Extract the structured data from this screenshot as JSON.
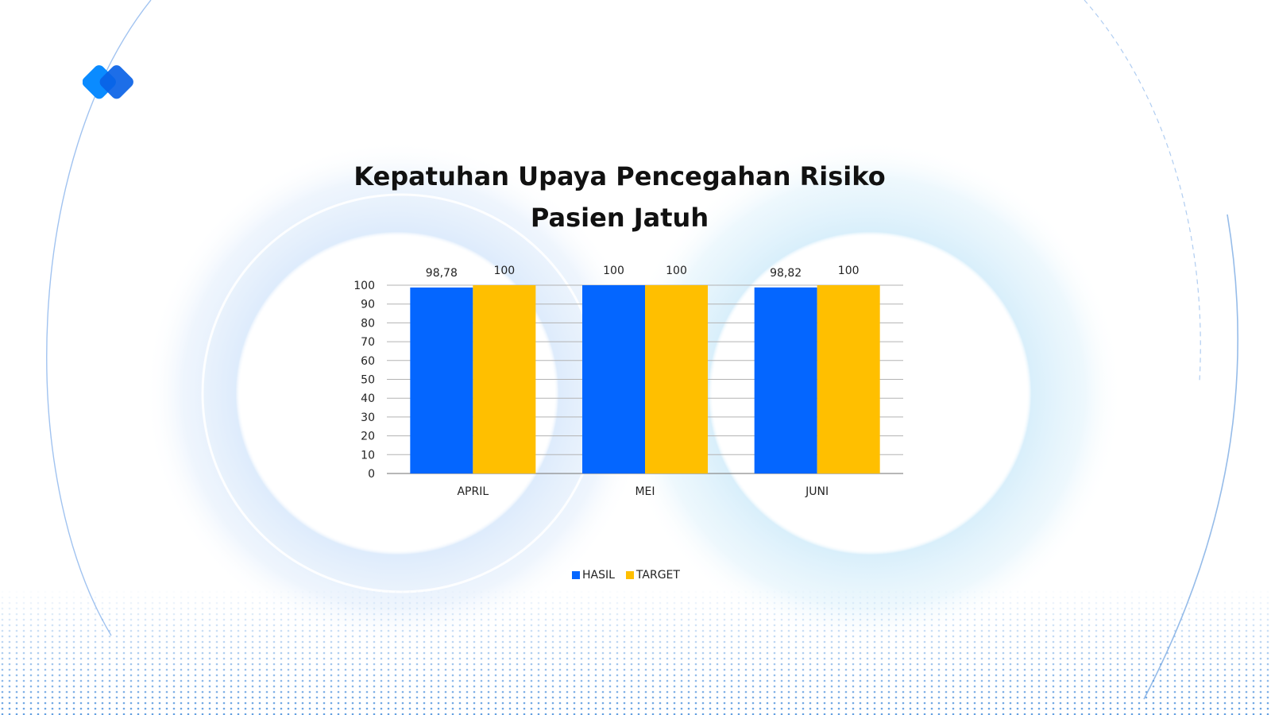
{
  "colors": {
    "hasil": "#0466ff",
    "target": "#ffbf00",
    "logo_primary": "#0a8bff",
    "logo_secondary": "#0a62e6",
    "grid": "#b3b3b3",
    "accent_glow": "#cfe2fb"
  },
  "chart_data": {
    "type": "bar",
    "title_line1": "Kepatuhan Upaya Pencegahan Risiko",
    "title_line2": "Pasien Jatuh",
    "categories": [
      "APRIL",
      "MEI",
      "JUNI"
    ],
    "series": [
      {
        "name": "HASIL",
        "values": [
          98.78,
          100,
          98.82
        ],
        "labels": [
          "98,78",
          "100",
          "98,82"
        ]
      },
      {
        "name": "TARGET",
        "values": [
          100,
          100,
          100
        ],
        "labels": [
          "100",
          "100",
          "100"
        ]
      }
    ],
    "ylim": [
      0,
      100
    ],
    "yticks": [
      "0",
      "10",
      "20",
      "30",
      "40",
      "50",
      "60",
      "70",
      "80",
      "90",
      "100"
    ],
    "grid": true,
    "legend_position": "bottom"
  },
  "logo": {
    "icon": "double-diamond-logo-icon"
  }
}
